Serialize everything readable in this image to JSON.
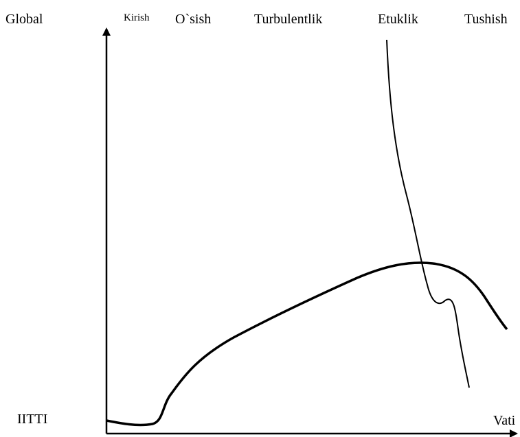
{
  "top_labels": {
    "global": "Global",
    "kirish": "Kirish",
    "osish": "O`sish",
    "turbulentlik": "Turbulentlik",
    "etuklik": "Etuklik",
    "tushish": "Tushish"
  },
  "axis_labels": {
    "y_bottom": "IITTI",
    "x": "Vati"
  }
}
